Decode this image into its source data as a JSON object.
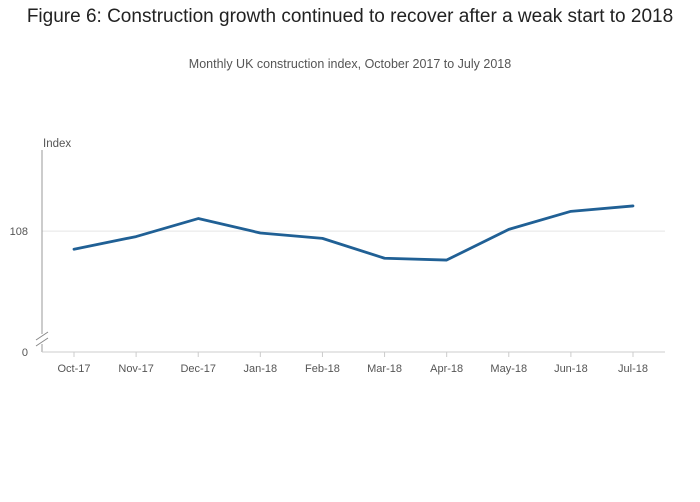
{
  "title": "Figure 6: Construction growth continued to recover after a weak start to 2018",
  "subtitle": "Monthly UK construction index, October 2017 to July 2018",
  "chart_data": {
    "type": "line",
    "title": "Figure 6: Construction growth continued to recover after a weak start to 2018",
    "subtitle": "Monthly UK construction index, October 2017 to July 2018",
    "ylabel": "Index",
    "xlabel": "",
    "categories": [
      "Oct-17",
      "Nov-17",
      "Dec-17",
      "Jan-18",
      "Feb-18",
      "Mar-18",
      "Apr-18",
      "May-18",
      "Jun-18",
      "Jul-18"
    ],
    "series": [
      {
        "values": [
          107.0,
          107.7,
          108.7,
          107.9,
          107.6,
          106.5,
          106.4,
          108.1,
          109.1,
          109.4
        ]
      }
    ],
    "y_ticks": [
      0,
      108
    ],
    "y_break": true,
    "ylim": [
      102.3,
      112.5
    ],
    "grid": true,
    "legend": "none",
    "line_color": "#206095"
  }
}
